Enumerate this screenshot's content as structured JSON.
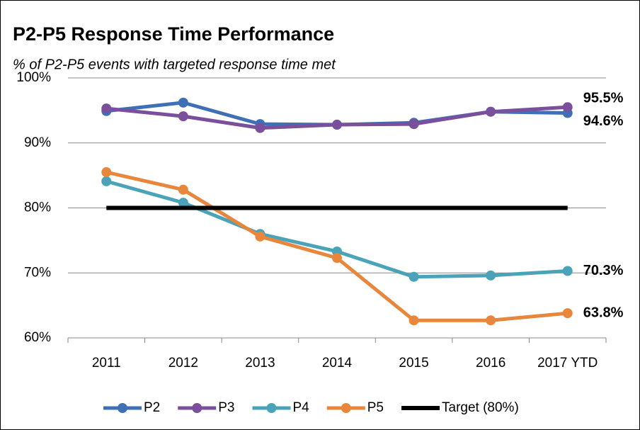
{
  "chart_data": {
    "type": "line",
    "title": "P2-P5 Response Time Performance",
    "subtitle": "% of P2-P5 events with targeted response time met",
    "categories": [
      "2011",
      "2012",
      "2013",
      "2014",
      "2015",
      "2016",
      "2017 YTD"
    ],
    "series": [
      {
        "name": "P2",
        "color": "#3f6fb5",
        "values": [
          94.9,
          96.2,
          92.9,
          92.8,
          93.1,
          94.8,
          94.6
        ],
        "value_labels": [
          null,
          null,
          null,
          null,
          null,
          null,
          "94.6%"
        ]
      },
      {
        "name": "P3",
        "color": "#7a4f9c",
        "values": [
          95.3,
          94.1,
          92.3,
          92.8,
          92.9,
          94.8,
          95.5
        ],
        "value_labels": [
          null,
          null,
          null,
          null,
          null,
          null,
          "95.5%"
        ]
      },
      {
        "name": "P4",
        "color": "#4aa3b8",
        "values": [
          84.1,
          80.8,
          76.0,
          73.3,
          69.4,
          69.6,
          70.3
        ],
        "value_labels": [
          null,
          null,
          null,
          null,
          null,
          null,
          "70.3%"
        ]
      },
      {
        "name": "P5",
        "color": "#e8873c",
        "values": [
          85.5,
          82.8,
          75.6,
          72.3,
          62.7,
          62.7,
          63.8
        ],
        "value_labels": [
          null,
          null,
          null,
          null,
          null,
          null,
          "63.8%"
        ]
      },
      {
        "name": "Target (80%)",
        "color": "#000000",
        "values": [
          80,
          80,
          80,
          80,
          80,
          80,
          80
        ],
        "markers": false
      }
    ],
    "ylim": [
      60,
      100
    ],
    "yticks": [
      {
        "value": 60,
        "label": "60%"
      },
      {
        "value": 70,
        "label": "70%"
      },
      {
        "value": 80,
        "label": "80%"
      },
      {
        "value": 90,
        "label": "90%"
      },
      {
        "value": 100,
        "label": "100%"
      }
    ],
    "grid": true,
    "legend": "bottom"
  }
}
